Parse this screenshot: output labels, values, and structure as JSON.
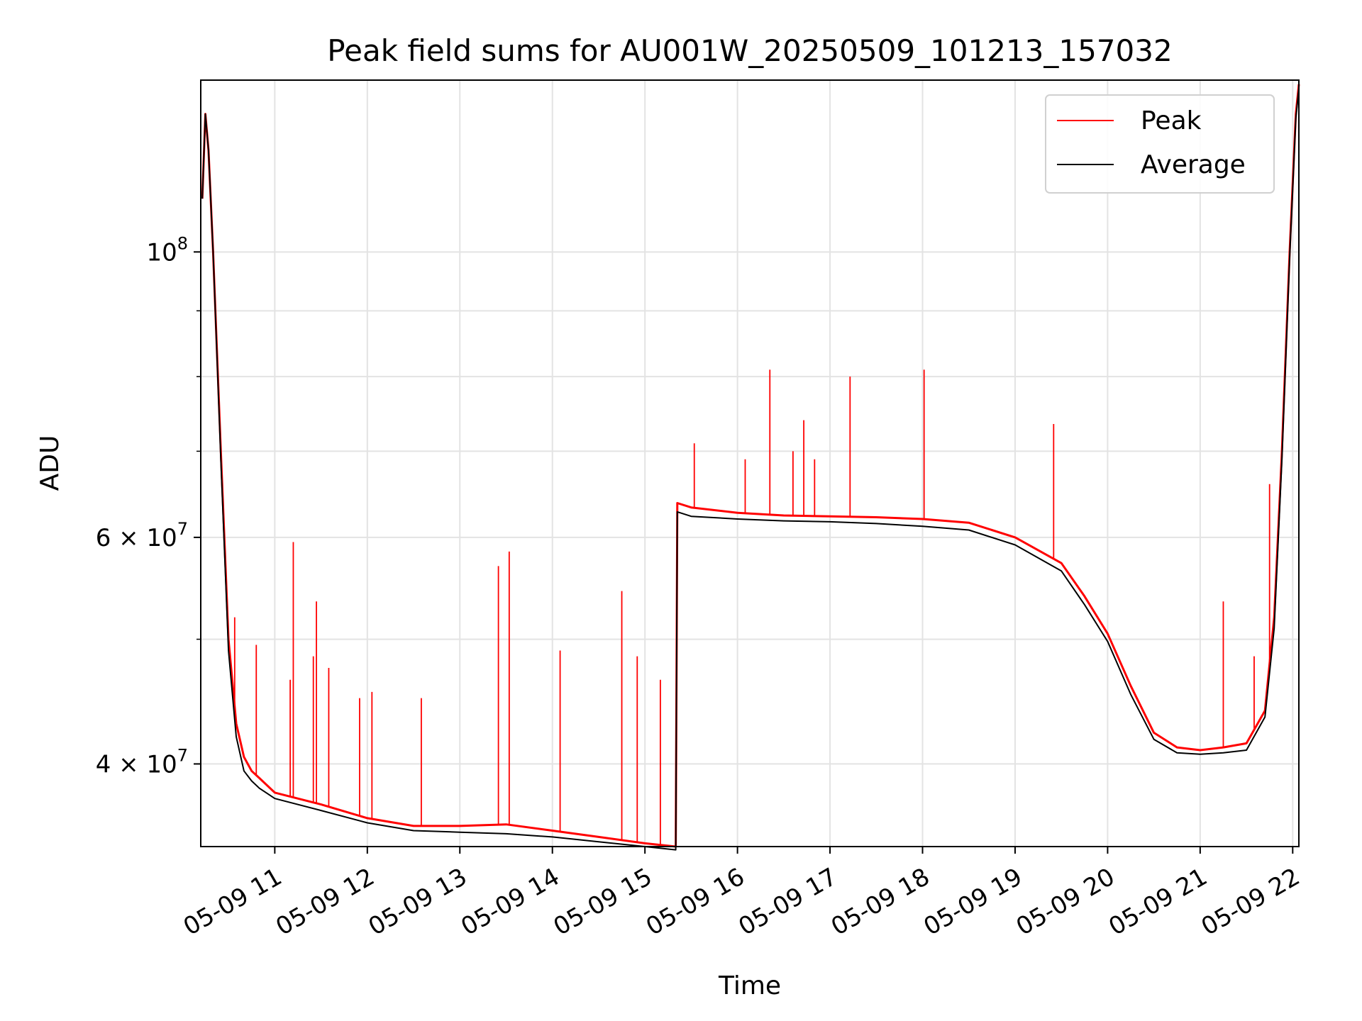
{
  "chart_data": {
    "type": "line",
    "title": "Peak field sums for AU001W_20250509_101213_157032",
    "xlabel": "Time",
    "ylabel": "ADU",
    "y_scale": "log",
    "grid": true,
    "legend_position": "top-right",
    "xlim": [
      "2025-05-09 10:12",
      "2025-05-09 22:04"
    ],
    "ylim": [
      34500000,
      136000000
    ],
    "x_ticks": [
      {
        "value": "2025-05-09 11:00",
        "label": "05-09 11"
      },
      {
        "value": "2025-05-09 12:00",
        "label": "05-09 12"
      },
      {
        "value": "2025-05-09 13:00",
        "label": "05-09 13"
      },
      {
        "value": "2025-05-09 14:00",
        "label": "05-09 14"
      },
      {
        "value": "2025-05-09 15:00",
        "label": "05-09 15"
      },
      {
        "value": "2025-05-09 16:00",
        "label": "05-09 16"
      },
      {
        "value": "2025-05-09 17:00",
        "label": "05-09 17"
      },
      {
        "value": "2025-05-09 18:00",
        "label": "05-09 18"
      },
      {
        "value": "2025-05-09 19:00",
        "label": "05-09 19"
      },
      {
        "value": "2025-05-09 20:00",
        "label": "05-09 20"
      },
      {
        "value": "2025-05-09 21:00",
        "label": "05-09 21"
      },
      {
        "value": "2025-05-09 22:00",
        "label": "05-09 22"
      }
    ],
    "y_ticks": [
      {
        "value": 40000000,
        "label": "4 × 10",
        "exp": "7"
      },
      {
        "value": 60000000,
        "label": "6 × 10",
        "exp": "7"
      },
      {
        "value": 100000000,
        "label": "10",
        "exp": "8"
      }
    ],
    "y_minor_ticks": [
      50000000,
      70000000,
      80000000,
      90000000
    ],
    "series": [
      {
        "name": "Peak",
        "color": "#ff0000",
        "x": [
          "2025-05-09 10:13",
          "2025-05-09 10:15",
          "2025-05-09 10:17",
          "2025-05-09 10:20",
          "2025-05-09 10:25",
          "2025-05-09 10:30",
          "2025-05-09 10:35",
          "2025-05-09 10:40",
          "2025-05-09 10:45",
          "2025-05-09 10:50",
          "2025-05-09 11:00",
          "2025-05-09 11:30",
          "2025-05-09 12:00",
          "2025-05-09 12:30",
          "2025-05-09 13:00",
          "2025-05-09 13:30",
          "2025-05-09 14:00",
          "2025-05-09 14:30",
          "2025-05-09 15:00",
          "2025-05-09 15:20",
          "2025-05-09 15:21",
          "2025-05-09 15:30",
          "2025-05-09 16:00",
          "2025-05-09 16:30",
          "2025-05-09 17:00",
          "2025-05-09 17:30",
          "2025-05-09 18:00",
          "2025-05-09 18:30",
          "2025-05-09 19:00",
          "2025-05-09 19:30",
          "2025-05-09 19:45",
          "2025-05-09 20:00",
          "2025-05-09 20:15",
          "2025-05-09 20:30",
          "2025-05-09 20:45",
          "2025-05-09 21:00",
          "2025-05-09 21:15",
          "2025-05-09 21:30",
          "2025-05-09 21:42",
          "2025-05-09 21:48",
          "2025-05-09 21:53",
          "2025-05-09 21:58",
          "2025-05-09 22:02",
          "2025-05-09 22:04"
        ],
        "y": [
          110000000,
          128000000,
          120000000,
          100000000,
          70000000,
          50000000,
          43000000,
          40500000,
          39500000,
          39000000,
          38000000,
          37200000,
          36300000,
          35800000,
          35800000,
          35900000,
          35500000,
          35100000,
          34700000,
          34500000,
          63800000,
          63300000,
          62700000,
          62400000,
          62300000,
          62200000,
          62000000,
          61600000,
          60000000,
          57300000,
          54000000,
          50500000,
          46000000,
          42300000,
          41200000,
          41000000,
          41200000,
          41500000,
          44000000,
          52000000,
          70000000,
          100000000,
          128000000,
          135000000
        ]
      },
      {
        "name": "Average",
        "color": "#000000",
        "x": [
          "2025-05-09 10:13",
          "2025-05-09 10:15",
          "2025-05-09 10:17",
          "2025-05-09 10:20",
          "2025-05-09 10:25",
          "2025-05-09 10:30",
          "2025-05-09 10:35",
          "2025-05-09 10:40",
          "2025-05-09 10:45",
          "2025-05-09 10:50",
          "2025-05-09 11:00",
          "2025-05-09 11:30",
          "2025-05-09 12:00",
          "2025-05-09 12:30",
          "2025-05-09 13:00",
          "2025-05-09 13:30",
          "2025-05-09 14:00",
          "2025-05-09 14:30",
          "2025-05-09 15:00",
          "2025-05-09 15:20",
          "2025-05-09 15:21",
          "2025-05-09 15:30",
          "2025-05-09 16:00",
          "2025-05-09 16:30",
          "2025-05-09 17:00",
          "2025-05-09 17:30",
          "2025-05-09 18:00",
          "2025-05-09 18:30",
          "2025-05-09 19:00",
          "2025-05-09 19:30",
          "2025-05-09 19:45",
          "2025-05-09 20:00",
          "2025-05-09 20:15",
          "2025-05-09 20:30",
          "2025-05-09 20:45",
          "2025-05-09 21:00",
          "2025-05-09 21:15",
          "2025-05-09 21:30",
          "2025-05-09 21:42",
          "2025-05-09 21:48",
          "2025-05-09 21:53",
          "2025-05-09 21:58",
          "2025-05-09 22:02",
          "2025-05-09 22:04"
        ],
        "y": [
          110000000,
          128000000,
          120000000,
          100000000,
          69000000,
          49000000,
          42000000,
          39500000,
          38800000,
          38300000,
          37600000,
          36800000,
          36000000,
          35500000,
          35400000,
          35300000,
          35100000,
          34800000,
          34500000,
          34300000,
          62800000,
          62300000,
          62000000,
          61800000,
          61700000,
          61500000,
          61200000,
          60800000,
          59200000,
          56500000,
          53200000,
          49800000,
          45300000,
          41800000,
          40800000,
          40700000,
          40800000,
          41000000,
          43500000,
          51000000,
          69000000,
          99000000,
          127000000,
          134000000
        ]
      }
    ],
    "spikes": [
      {
        "series": "Peak",
        "x": "2025-05-09 10:34",
        "y": 52000000
      },
      {
        "series": "Peak",
        "x": "2025-05-09 10:48",
        "y": 49500000
      },
      {
        "series": "Peak",
        "x": "2025-05-09 11:10",
        "y": 46500000
      },
      {
        "series": "Peak",
        "x": "2025-05-09 11:12",
        "y": 59500000
      },
      {
        "series": "Peak",
        "x": "2025-05-09 11:25",
        "y": 48500000
      },
      {
        "series": "Peak",
        "x": "2025-05-09 11:27",
        "y": 53500000
      },
      {
        "series": "Peak",
        "x": "2025-05-09 11:35",
        "y": 47500000
      },
      {
        "series": "Peak",
        "x": "2025-05-09 11:55",
        "y": 45000000
      },
      {
        "series": "Peak",
        "x": "2025-05-09 12:03",
        "y": 45500000
      },
      {
        "series": "Peak",
        "x": "2025-05-09 12:35",
        "y": 45000000
      },
      {
        "series": "Peak",
        "x": "2025-05-09 13:25",
        "y": 57000000
      },
      {
        "series": "Peak",
        "x": "2025-05-09 13:32",
        "y": 58500000
      },
      {
        "series": "Peak",
        "x": "2025-05-09 14:05",
        "y": 49000000
      },
      {
        "series": "Peak",
        "x": "2025-05-09 14:45",
        "y": 54500000
      },
      {
        "series": "Peak",
        "x": "2025-05-09 14:55",
        "y": 48500000
      },
      {
        "series": "Peak",
        "x": "2025-05-09 15:10",
        "y": 46500000
      },
      {
        "series": "Peak",
        "x": "2025-05-09 15:32",
        "y": 71000000
      },
      {
        "series": "Peak",
        "x": "2025-05-09 16:05",
        "y": 69000000
      },
      {
        "series": "Peak",
        "x": "2025-05-09 16:21",
        "y": 81000000
      },
      {
        "series": "Peak",
        "x": "2025-05-09 16:36",
        "y": 70000000
      },
      {
        "series": "Peak",
        "x": "2025-05-09 16:43",
        "y": 74000000
      },
      {
        "series": "Peak",
        "x": "2025-05-09 16:50",
        "y": 69000000
      },
      {
        "series": "Peak",
        "x": "2025-05-09 17:13",
        "y": 80000000
      },
      {
        "series": "Peak",
        "x": "2025-05-09 18:01",
        "y": 81000000
      },
      {
        "series": "Peak",
        "x": "2025-05-09 19:25",
        "y": 73500000
      },
      {
        "series": "Peak",
        "x": "2025-05-09 21:15",
        "y": 53500000
      },
      {
        "series": "Peak",
        "x": "2025-05-09 21:35",
        "y": 48500000
      },
      {
        "series": "Peak",
        "x": "2025-05-09 21:45",
        "y": 66000000
      }
    ]
  }
}
